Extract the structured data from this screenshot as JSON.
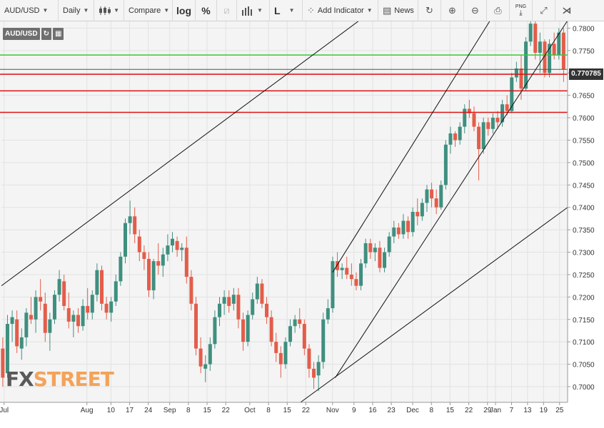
{
  "toolbar": {
    "symbol": "AUD/USD",
    "interval": "Daily",
    "compare": "Compare",
    "log": "log",
    "percent": "%",
    "line_type": "L",
    "add_indicator": "Add Indicator",
    "news": "News",
    "png": "PNG"
  },
  "symbol_label": "AUD/USD",
  "current_price": "0.770785",
  "watermark": {
    "fx": "FX",
    "street": "STREET"
  },
  "colors": {
    "up": "#3f8f7f",
    "down": "#e35d4a",
    "green_line": "#33cc33",
    "red_line": "#dd1111",
    "trend_line": "#111111"
  },
  "chart_data": {
    "type": "candlestick",
    "title": "",
    "ylim": [
      0.6965,
      0.7815
    ],
    "y_ticks": [
      "0.7800",
      "0.7750",
      "0.7700",
      "0.7650",
      "0.7600",
      "0.7550",
      "0.7500",
      "0.7450",
      "0.7400",
      "0.7350",
      "0.7300",
      "0.7250",
      "0.7200",
      "0.7150",
      "0.7100",
      "0.7050",
      "0.7000"
    ],
    "x_ticks": [
      {
        "label": "Jul",
        "day": 0
      },
      {
        "label": "Aug",
        "day": 31
      },
      {
        "label": "10",
        "day": 40
      },
      {
        "label": "17",
        "day": 47
      },
      {
        "label": "24",
        "day": 54
      },
      {
        "label": "Sep",
        "day": 62
      },
      {
        "label": "8",
        "day": 69
      },
      {
        "label": "15",
        "day": 76
      },
      {
        "label": "22",
        "day": 83
      },
      {
        "label": "Oct",
        "day": 92
      },
      {
        "label": "8",
        "day": 99
      },
      {
        "label": "15",
        "day": 106
      },
      {
        "label": "22",
        "day": 113
      },
      {
        "label": "Nov",
        "day": 123
      },
      {
        "label": "9",
        "day": 131
      },
      {
        "label": "16",
        "day": 138
      },
      {
        "label": "23",
        "day": 145
      },
      {
        "label": "Dec",
        "day": 153
      },
      {
        "label": "8",
        "day": 160
      },
      {
        "label": "15",
        "day": 167
      },
      {
        "label": "22",
        "day": 174
      },
      {
        "label": "29",
        "day": 181
      },
      {
        "label": "Jan",
        "day": 184
      },
      {
        "label": "7",
        "day": 190
      },
      {
        "label": "13",
        "day": 196
      },
      {
        "label": "19",
        "day": 202
      },
      {
        "label": "25",
        "day": 208
      }
    ],
    "candles": [
      {
        "o": 0.7085,
        "h": 0.711,
        "l": 0.7,
        "c": 0.702
      },
      {
        "o": 0.703,
        "h": 0.716,
        "l": 0.702,
        "c": 0.714
      },
      {
        "o": 0.714,
        "h": 0.717,
        "l": 0.71,
        "c": 0.7155
      },
      {
        "o": 0.715,
        "h": 0.717,
        "l": 0.7075,
        "c": 0.709
      },
      {
        "o": 0.7085,
        "h": 0.713,
        "l": 0.706,
        "c": 0.711
      },
      {
        "o": 0.711,
        "h": 0.7175,
        "l": 0.709,
        "c": 0.7165
      },
      {
        "o": 0.716,
        "h": 0.72,
        "l": 0.714,
        "c": 0.715
      },
      {
        "o": 0.715,
        "h": 0.7215,
        "l": 0.712,
        "c": 0.72
      },
      {
        "o": 0.72,
        "h": 0.724,
        "l": 0.717,
        "c": 0.719
      },
      {
        "o": 0.7185,
        "h": 0.721,
        "l": 0.71,
        "c": 0.712
      },
      {
        "o": 0.712,
        "h": 0.7165,
        "l": 0.708,
        "c": 0.715
      },
      {
        "o": 0.715,
        "h": 0.7215,
        "l": 0.714,
        "c": 0.7205
      },
      {
        "o": 0.7205,
        "h": 0.726,
        "l": 0.719,
        "c": 0.724
      },
      {
        "o": 0.7235,
        "h": 0.725,
        "l": 0.717,
        "c": 0.718
      },
      {
        "o": 0.7175,
        "h": 0.721,
        "l": 0.713,
        "c": 0.7145
      },
      {
        "o": 0.7145,
        "h": 0.717,
        "l": 0.711,
        "c": 0.716
      },
      {
        "o": 0.716,
        "h": 0.7175,
        "l": 0.712,
        "c": 0.7135
      },
      {
        "o": 0.7135,
        "h": 0.7195,
        "l": 0.7125,
        "c": 0.718
      },
      {
        "o": 0.718,
        "h": 0.722,
        "l": 0.715,
        "c": 0.7165
      },
      {
        "o": 0.7165,
        "h": 0.7215,
        "l": 0.715,
        "c": 0.7205
      },
      {
        "o": 0.7205,
        "h": 0.7275,
        "l": 0.719,
        "c": 0.726
      },
      {
        "o": 0.726,
        "h": 0.727,
        "l": 0.717,
        "c": 0.7185
      },
      {
        "o": 0.7185,
        "h": 0.72,
        "l": 0.715,
        "c": 0.7165
      },
      {
        "o": 0.7165,
        "h": 0.72,
        "l": 0.7145,
        "c": 0.719
      },
      {
        "o": 0.719,
        "h": 0.725,
        "l": 0.718,
        "c": 0.7235
      },
      {
        "o": 0.7235,
        "h": 0.73,
        "l": 0.7225,
        "c": 0.729
      },
      {
        "o": 0.729,
        "h": 0.7375,
        "l": 0.7275,
        "c": 0.7365
      },
      {
        "o": 0.7365,
        "h": 0.7415,
        "l": 0.734,
        "c": 0.738
      },
      {
        "o": 0.738,
        "h": 0.74,
        "l": 0.732,
        "c": 0.734
      },
      {
        "o": 0.7335,
        "h": 0.735,
        "l": 0.728,
        "c": 0.73
      },
      {
        "o": 0.73,
        "h": 0.7315,
        "l": 0.726,
        "c": 0.7285
      },
      {
        "o": 0.7285,
        "h": 0.73,
        "l": 0.72,
        "c": 0.7215
      },
      {
        "o": 0.7215,
        "h": 0.7285,
        "l": 0.7195,
        "c": 0.728
      },
      {
        "o": 0.728,
        "h": 0.732,
        "l": 0.725,
        "c": 0.727
      },
      {
        "o": 0.727,
        "h": 0.731,
        "l": 0.7245,
        "c": 0.7295
      },
      {
        "o": 0.7295,
        "h": 0.734,
        "l": 0.728,
        "c": 0.7315
      },
      {
        "o": 0.7315,
        "h": 0.7345,
        "l": 0.73,
        "c": 0.733
      },
      {
        "o": 0.7325,
        "h": 0.7335,
        "l": 0.729,
        "c": 0.7305
      },
      {
        "o": 0.7305,
        "h": 0.732,
        "l": 0.728,
        "c": 0.731
      },
      {
        "o": 0.731,
        "h": 0.7335,
        "l": 0.723,
        "c": 0.7245
      },
      {
        "o": 0.7245,
        "h": 0.726,
        "l": 0.717,
        "c": 0.7185
      },
      {
        "o": 0.7185,
        "h": 0.72,
        "l": 0.707,
        "c": 0.7085
      },
      {
        "o": 0.7085,
        "h": 0.711,
        "l": 0.703,
        "c": 0.7045
      },
      {
        "o": 0.704,
        "h": 0.707,
        "l": 0.701,
        "c": 0.705
      },
      {
        "o": 0.705,
        "h": 0.711,
        "l": 0.7035,
        "c": 0.7095
      },
      {
        "o": 0.7095,
        "h": 0.717,
        "l": 0.7085,
        "c": 0.7155
      },
      {
        "o": 0.7155,
        "h": 0.72,
        "l": 0.7135,
        "c": 0.7185
      },
      {
        "o": 0.7185,
        "h": 0.7215,
        "l": 0.716,
        "c": 0.72
      },
      {
        "o": 0.72,
        "h": 0.7215,
        "l": 0.7165,
        "c": 0.718
      },
      {
        "o": 0.7185,
        "h": 0.722,
        "l": 0.717,
        "c": 0.7205
      },
      {
        "o": 0.7205,
        "h": 0.722,
        "l": 0.713,
        "c": 0.715
      },
      {
        "o": 0.715,
        "h": 0.7165,
        "l": 0.708,
        "c": 0.71
      },
      {
        "o": 0.71,
        "h": 0.717,
        "l": 0.709,
        "c": 0.716
      },
      {
        "o": 0.716,
        "h": 0.721,
        "l": 0.715,
        "c": 0.7195
      },
      {
        "o": 0.7195,
        "h": 0.7245,
        "l": 0.7185,
        "c": 0.723
      },
      {
        "o": 0.723,
        "h": 0.724,
        "l": 0.7175,
        "c": 0.7185
      },
      {
        "o": 0.7185,
        "h": 0.72,
        "l": 0.714,
        "c": 0.7155
      },
      {
        "o": 0.7155,
        "h": 0.717,
        "l": 0.709,
        "c": 0.71
      },
      {
        "o": 0.71,
        "h": 0.712,
        "l": 0.7055,
        "c": 0.7075
      },
      {
        "o": 0.7075,
        "h": 0.709,
        "l": 0.702,
        "c": 0.705
      },
      {
        "o": 0.705,
        "h": 0.711,
        "l": 0.704,
        "c": 0.71
      },
      {
        "o": 0.71,
        "h": 0.715,
        "l": 0.709,
        "c": 0.7135
      },
      {
        "o": 0.7135,
        "h": 0.716,
        "l": 0.712,
        "c": 0.715
      },
      {
        "o": 0.715,
        "h": 0.7175,
        "l": 0.713,
        "c": 0.714
      },
      {
        "o": 0.714,
        "h": 0.715,
        "l": 0.707,
        "c": 0.7085
      },
      {
        "o": 0.7085,
        "h": 0.7095,
        "l": 0.702,
        "c": 0.704
      },
      {
        "o": 0.704,
        "h": 0.7055,
        "l": 0.6995,
        "c": 0.702
      },
      {
        "o": 0.7025,
        "h": 0.707,
        "l": 0.699,
        "c": 0.7055
      },
      {
        "o": 0.7055,
        "h": 0.7165,
        "l": 0.704,
        "c": 0.715
      },
      {
        "o": 0.715,
        "h": 0.7195,
        "l": 0.714,
        "c": 0.7175
      },
      {
        "o": 0.7175,
        "h": 0.729,
        "l": 0.7165,
        "c": 0.728
      },
      {
        "o": 0.728,
        "h": 0.73,
        "l": 0.7245,
        "c": 0.726
      },
      {
        "o": 0.726,
        "h": 0.7275,
        "l": 0.724,
        "c": 0.7265
      },
      {
        "o": 0.7265,
        "h": 0.729,
        "l": 0.724,
        "c": 0.725
      },
      {
        "o": 0.725,
        "h": 0.7275,
        "l": 0.7225,
        "c": 0.724
      },
      {
        "o": 0.724,
        "h": 0.7255,
        "l": 0.7215,
        "c": 0.7225
      },
      {
        "o": 0.7225,
        "h": 0.7285,
        "l": 0.7215,
        "c": 0.7275
      },
      {
        "o": 0.7275,
        "h": 0.733,
        "l": 0.7265,
        "c": 0.732
      },
      {
        "o": 0.732,
        "h": 0.733,
        "l": 0.7285,
        "c": 0.73
      },
      {
        "o": 0.73,
        "h": 0.732,
        "l": 0.728,
        "c": 0.731
      },
      {
        "o": 0.731,
        "h": 0.7325,
        "l": 0.7255,
        "c": 0.7265
      },
      {
        "o": 0.7265,
        "h": 0.731,
        "l": 0.7255,
        "c": 0.73
      },
      {
        "o": 0.73,
        "h": 0.7345,
        "l": 0.729,
        "c": 0.7335
      },
      {
        "o": 0.7335,
        "h": 0.737,
        "l": 0.732,
        "c": 0.7355
      },
      {
        "o": 0.7355,
        "h": 0.7365,
        "l": 0.733,
        "c": 0.734
      },
      {
        "o": 0.734,
        "h": 0.7385,
        "l": 0.733,
        "c": 0.737
      },
      {
        "o": 0.737,
        "h": 0.738,
        "l": 0.733,
        "c": 0.7345
      },
      {
        "o": 0.7345,
        "h": 0.74,
        "l": 0.7335,
        "c": 0.739
      },
      {
        "o": 0.739,
        "h": 0.742,
        "l": 0.736,
        "c": 0.738
      },
      {
        "o": 0.738,
        "h": 0.742,
        "l": 0.737,
        "c": 0.741
      },
      {
        "o": 0.741,
        "h": 0.745,
        "l": 0.739,
        "c": 0.744
      },
      {
        "o": 0.744,
        "h": 0.7455,
        "l": 0.74,
        "c": 0.742
      },
      {
        "o": 0.742,
        "h": 0.744,
        "l": 0.7385,
        "c": 0.74
      },
      {
        "o": 0.74,
        "h": 0.746,
        "l": 0.7395,
        "c": 0.745
      },
      {
        "o": 0.745,
        "h": 0.755,
        "l": 0.744,
        "c": 0.754
      },
      {
        "o": 0.754,
        "h": 0.758,
        "l": 0.752,
        "c": 0.7565
      },
      {
        "o": 0.7565,
        "h": 0.757,
        "l": 0.7535,
        "c": 0.755
      },
      {
        "o": 0.755,
        "h": 0.759,
        "l": 0.754,
        "c": 0.758
      },
      {
        "o": 0.758,
        "h": 0.763,
        "l": 0.7565,
        "c": 0.762
      },
      {
        "o": 0.762,
        "h": 0.764,
        "l": 0.76,
        "c": 0.761
      },
      {
        "o": 0.761,
        "h": 0.7625,
        "l": 0.757,
        "c": 0.758
      },
      {
        "o": 0.758,
        "h": 0.759,
        "l": 0.746,
        "c": 0.753
      },
      {
        "o": 0.753,
        "h": 0.76,
        "l": 0.752,
        "c": 0.759
      },
      {
        "o": 0.759,
        "h": 0.76,
        "l": 0.756,
        "c": 0.7575
      },
      {
        "o": 0.7575,
        "h": 0.761,
        "l": 0.7565,
        "c": 0.76
      },
      {
        "o": 0.76,
        "h": 0.7615,
        "l": 0.7575,
        "c": 0.759
      },
      {
        "o": 0.759,
        "h": 0.764,
        "l": 0.758,
        "c": 0.763
      },
      {
        "o": 0.763,
        "h": 0.765,
        "l": 0.7605,
        "c": 0.7615
      },
      {
        "o": 0.7615,
        "h": 0.77,
        "l": 0.761,
        "c": 0.769
      },
      {
        "o": 0.769,
        "h": 0.7725,
        "l": 0.768,
        "c": 0.771
      },
      {
        "o": 0.771,
        "h": 0.774,
        "l": 0.764,
        "c": 0.7665
      },
      {
        "o": 0.7665,
        "h": 0.778,
        "l": 0.766,
        "c": 0.777
      },
      {
        "o": 0.777,
        "h": 0.7815,
        "l": 0.776,
        "c": 0.781
      },
      {
        "o": 0.781,
        "h": 0.7815,
        "l": 0.773,
        "c": 0.7745
      },
      {
        "o": 0.7745,
        "h": 0.779,
        "l": 0.77,
        "c": 0.777
      },
      {
        "o": 0.777,
        "h": 0.7775,
        "l": 0.769,
        "c": 0.77
      },
      {
        "o": 0.77,
        "h": 0.7775,
        "l": 0.769,
        "c": 0.7765
      },
      {
        "o": 0.7765,
        "h": 0.779,
        "l": 0.773,
        "c": 0.774
      },
      {
        "o": 0.774,
        "h": 0.78,
        "l": 0.773,
        "c": 0.779
      },
      {
        "o": 0.779,
        "h": 0.78,
        "l": 0.768,
        "c": 0.7708
      }
    ]
  }
}
